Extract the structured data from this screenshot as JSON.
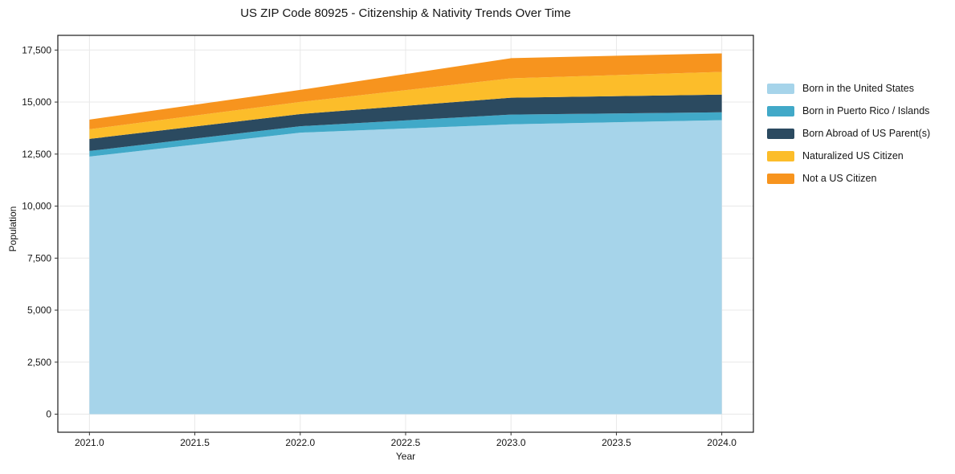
{
  "chart_data": {
    "type": "area",
    "stacked": true,
    "title": "US ZIP Code 80925 - Citizenship & Nativity Trends Over Time",
    "xlabel": "Year",
    "ylabel": "Population",
    "x": [
      2021,
      2022,
      2023,
      2024
    ],
    "series": [
      {
        "name": "Born in the United States",
        "color": "#a6d4ea",
        "values": [
          12380,
          13530,
          13930,
          14130
        ]
      },
      {
        "name": "Born in Puerto Rico / Islands",
        "color": "#41a9c8",
        "values": [
          270,
          310,
          470,
          380
        ]
      },
      {
        "name": "Born Abroad of US Parent(s)",
        "color": "#2b4a60",
        "values": [
          580,
          585,
          810,
          850
        ]
      },
      {
        "name": "Naturalized US Citizen",
        "color": "#fcbd2a",
        "values": [
          465,
          580,
          930,
          1090
        ]
      },
      {
        "name": "Not a US Citizen",
        "color": "#f7941e",
        "values": [
          465,
          580,
          970,
          890
        ]
      }
    ],
    "stack_totals": [
      14160,
      15585,
      17110,
      17340
    ],
    "xlim": [
      2020.85,
      2024.15
    ],
    "ylim": [
      -867,
      18207
    ],
    "xticks": [
      2021.0,
      2021.5,
      2022.0,
      2022.5,
      2023.0,
      2023.5,
      2024.0
    ],
    "xtick_labels": [
      "2021.0",
      "2021.5",
      "2022.0",
      "2022.5",
      "2023.0",
      "2023.5",
      "2024.0"
    ],
    "yticks": [
      0,
      2500,
      5000,
      7500,
      10000,
      12500,
      15000,
      17500
    ],
    "ytick_labels": [
      "0",
      "2,500",
      "5,000",
      "7,500",
      "10,000",
      "12,500",
      "15,000",
      "17,500"
    ],
    "grid": true,
    "legend_position": "right-outside",
    "grid_color": "#e8e8e8",
    "spine_color": "#1a1a1a",
    "tick_color": "#333333",
    "text_color": "#151515",
    "background_color": "#ffffff"
  }
}
